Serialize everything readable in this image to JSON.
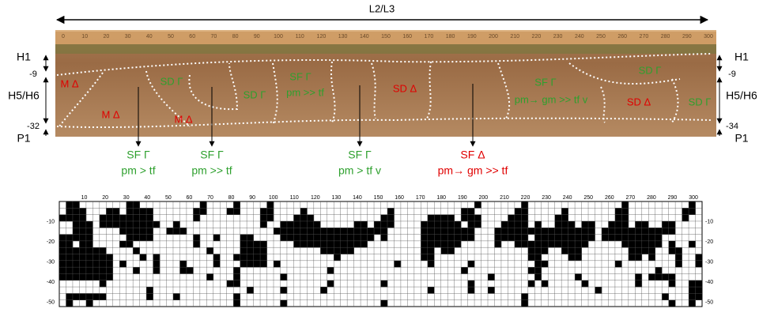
{
  "header": {
    "title": "L2/L3"
  },
  "photo": {
    "ruler_ticks": [
      0,
      10,
      20,
      30,
      40,
      50,
      60,
      70,
      80,
      90,
      100,
      110,
      120,
      130,
      140,
      150,
      160,
      170,
      180,
      190,
      200,
      210,
      220,
      230,
      240,
      250,
      260,
      270,
      280,
      290,
      300
    ],
    "left_labels": [
      "H1",
      "-9",
      "H5/H6",
      "-32",
      "P1"
    ],
    "right_labels": [
      "H1",
      "-9",
      "H5/H6",
      "-34",
      "P1"
    ],
    "annotations": [
      {
        "text": "M Δ",
        "color": "red"
      },
      {
        "text": "SD Γ",
        "color": "green"
      },
      {
        "text": "M Δ",
        "color": "red"
      },
      {
        "text": "M Δ",
        "color": "red"
      },
      {
        "text": "SD Γ",
        "color": "green"
      },
      {
        "text": "SF Γ",
        "color": "green"
      },
      {
        "text": "pm >> tf",
        "color": "green"
      },
      {
        "text": "SD Δ",
        "color": "red"
      },
      {
        "text": "SF Γ",
        "color": "green"
      },
      {
        "text": "pm→ gm >> tf v",
        "color": "green"
      },
      {
        "text": "SD Γ",
        "color": "green"
      },
      {
        "text": "SD Δ",
        "color": "red"
      },
      {
        "text": "SD Γ",
        "color": "green"
      }
    ],
    "callouts": [
      {
        "lines": [
          "SF Γ",
          "pm > tf"
        ],
        "color": "green"
      },
      {
        "lines": [
          "SF Γ",
          "pm >> tf"
        ],
        "color": "green"
      },
      {
        "lines": [
          "SF Γ",
          "pm > tf v"
        ],
        "color": "green"
      },
      {
        "lines": [
          "SF Δ",
          "pm→ gm >> tf"
        ],
        "color": "red"
      }
    ]
  },
  "grid": {
    "x_ticks": [
      10,
      20,
      30,
      40,
      50,
      60,
      70,
      80,
      90,
      100,
      110,
      120,
      130,
      140,
      150,
      160,
      170,
      180,
      190,
      200,
      210,
      220,
      230,
      240,
      250,
      260,
      270,
      280,
      290,
      300
    ],
    "y_ticks": [
      -10,
      -20,
      -30,
      -40,
      -50
    ],
    "rows": [
      "01100000 00110000 00000100 00100001 00000000 00000000 00000000 00000010 00000100 00000000 00001000 00000010",
      "01110001 10111100 00001100 01100011 00001000 00000000 01000000 00001100 00001100 00010000 00011000 00000110",
      "11110011 11111100 00001000 00000011 00011100 00000000 11000001 11101110 00011100 00110000 00011000 00000100",
      "00111011 11111110 01000000 00000010 01111110 00001101 11000011 11110110 00111101 00111011 00111011 00110000",
      "00111000 01111100 11100000 00000000 11111111 11111111 10000011 11111100 01111111 11111111 01111111 11110000",
      "11111000 00111100 00001001 00011000 01111111 11111110 10000011 11111100 01111101 11111111 01111111 11000000",
      "11011000 01100000 00001000 00011110 00011111 11111100 00000011 11110000 01001111 11111110 00001111 11010010",
      "11111110 00010000 00000010 00011110 00000001 11110000 00000011 01100000 00000011 10011100 00000111 10011000",
      "11111111 00001010 00000001 00111110 00000000 01000000 00000011 00000000 00000011 00001100 00000110 10001001",
      "11111111 01000010 00100001 00011110 10000000 00000000 00100001 00000100 00000001 10000000 00010000 00001001",
      "11111111 00010010 00110000 00100000 00000000 10000000 00000000 00001000 00000011 00000000 00000000 01000000",
      "11111111 00000000 00000010 00100000 01000000 00000000 00000000 00000000 10000001 00000100 00000010 11110000",
      "00000010 00000000 00000000 01100000 00000000 10000000 10000000 00000100 00000010 10000010 00000010 00010011",
      "00000000 00000100 00000000 00001000 01000001 00000000 00000001 00000100 10000000 00000000 10000000 00000011",
      "01111110 00000100 01000000 00100000 00000000 00000000 00000000 00000000 00000100 00000000 00000000 00100011",
      "01001000 00000000 00000000 00100000 01000000 00000000 10000000 00000000 00000100 00000000 00000000 00010010"
    ]
  }
}
